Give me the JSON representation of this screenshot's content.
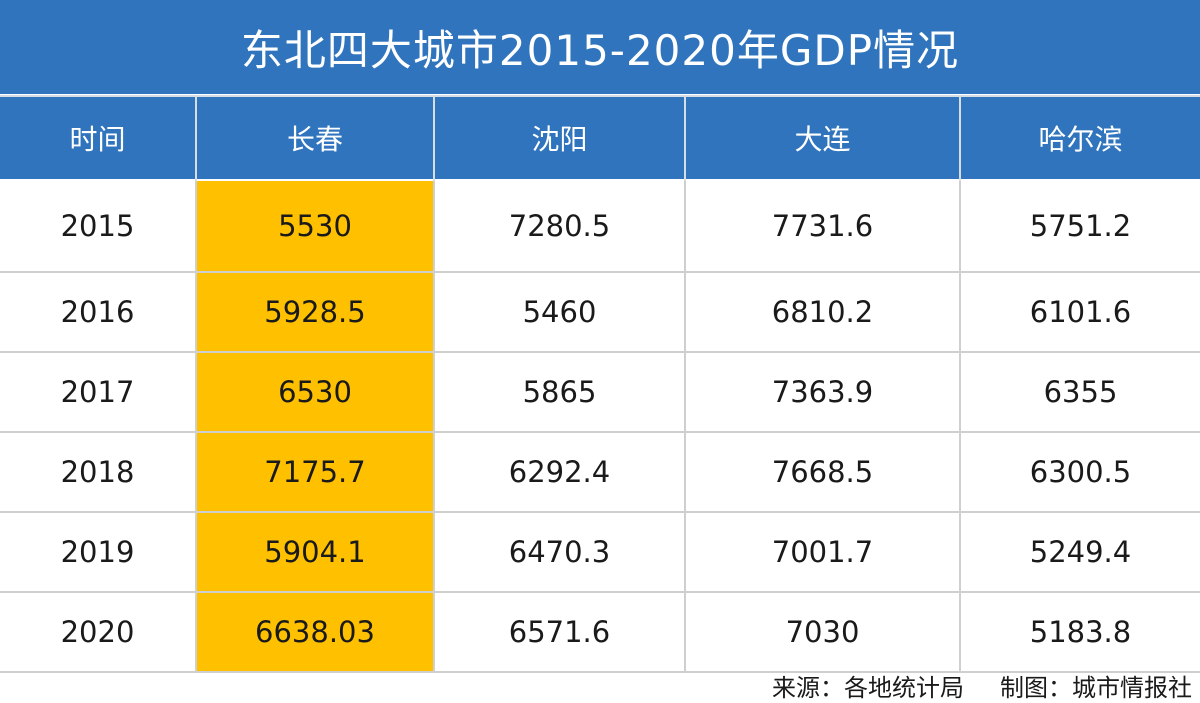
{
  "chart_data": {
    "type": "table",
    "title": "东北四大城市2015-2020年GDP情况",
    "columns": [
      "时间",
      "长春",
      "沈阳",
      "大连",
      "哈尔滨"
    ],
    "rows": [
      [
        "2015",
        "5530",
        "7280.5",
        "7731.6",
        "5751.2"
      ],
      [
        "2016",
        "5928.5",
        "5460",
        "6810.2",
        "6101.6"
      ],
      [
        "2017",
        "6530",
        "5865",
        "7363.9",
        "6355"
      ],
      [
        "2018",
        "7175.7",
        "6292.4",
        "7668.5",
        "6300.5"
      ],
      [
        "2019",
        "5904.1",
        "6470.3",
        "7001.7",
        "5249.4"
      ],
      [
        "2020",
        "6638.03",
        "6571.6",
        "7030",
        "5183.8"
      ]
    ],
    "highlight_column": "长春"
  },
  "footer": {
    "source": "来源：各地统计局",
    "credit": "制图：城市情报社"
  },
  "colors": {
    "header_blue": "#2f74bd",
    "highlight_yellow": "#ffc000"
  }
}
